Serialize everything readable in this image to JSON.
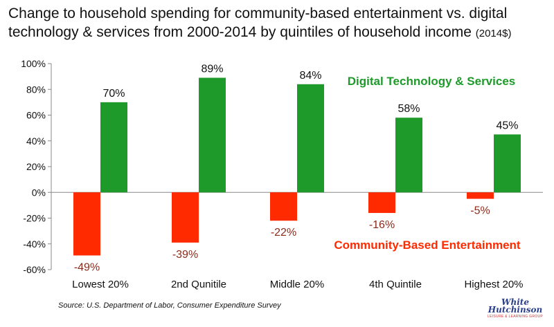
{
  "title": "Change to household spending for community-based entertainment vs. digital technology & services from 2000-2014 by quintiles of household income",
  "title_unit": "(2014$)",
  "source": "Source: U.S. Department of Labor, Consumer Expenditure Survey",
  "logo": {
    "line1": "White",
    "line2": "Hutchinson",
    "tagline": "LEISURE & LEARNING GROUP"
  },
  "chart_data": {
    "type": "bar",
    "categories": [
      "Lowest 20%",
      "2nd Qunitile",
      "Middle 20%",
      "4th Quintile",
      "Highest 20%"
    ],
    "series": [
      {
        "name": "Community-Based Entertainment",
        "values": [
          -49,
          -39,
          -22,
          -16,
          -5
        ],
        "labels": [
          "-49%",
          "-39%",
          "-22%",
          "-16%",
          "-5%"
        ],
        "color": "#ff2a00"
      },
      {
        "name": "Digital Technology & Services",
        "values": [
          70,
          89,
          84,
          58,
          45
        ],
        "labels": [
          "70%",
          "89%",
          "84%",
          "58%",
          "45%"
        ],
        "color": "#1e9a2a"
      }
    ],
    "yticks": [
      -60,
      -40,
      -20,
      0,
      20,
      40,
      60,
      80,
      100
    ],
    "ytick_labels": [
      "-60%",
      "-40%",
      "-20%",
      "0%",
      "20%",
      "40%",
      "60%",
      "80%",
      "100%"
    ],
    "ylim": [
      -60,
      100
    ],
    "grid": false
  }
}
